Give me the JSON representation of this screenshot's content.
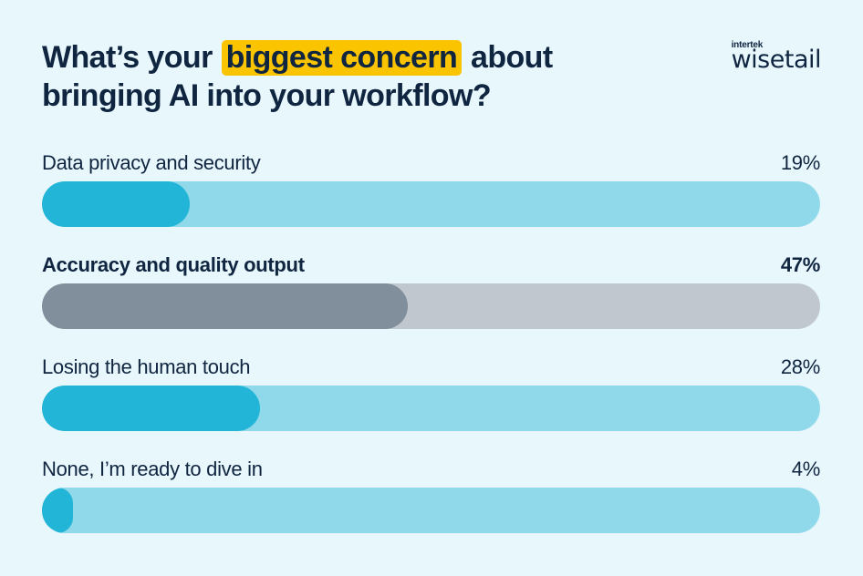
{
  "header": {
    "title_before": "What’s your ",
    "title_highlight": "biggest concern",
    "title_after": " about bringing AI into your workflow?",
    "highlight_color": "#fbc400"
  },
  "logo": {
    "small_text": "intertek",
    "big_text": "wisetail"
  },
  "poll": {
    "options": [
      {
        "label": "Data privacy and security",
        "percent_label": "19%",
        "value": 19,
        "style": "blue"
      },
      {
        "label": "Accuracy and quality output",
        "percent_label": "47%",
        "value": 47,
        "style": "grey-bold"
      },
      {
        "label": "Losing the human touch",
        "percent_label": "28%",
        "value": 28,
        "style": "blue"
      },
      {
        "label": "None, I’m ready to dive in",
        "percent_label": "4%",
        "value": 4,
        "style": "blue"
      }
    ],
    "colors": {
      "background": "#e8f7fc",
      "track_blue": "#90d9ea",
      "fill_blue": "#22b5d8",
      "track_grey": "#c0c7cf",
      "fill_grey": "#818e9b",
      "text": "#0f2540"
    }
  },
  "chart_data": {
    "type": "bar",
    "orientation": "horizontal",
    "title": "What’s your biggest concern about bringing AI into your workflow?",
    "categories": [
      "Data privacy and security",
      "Accuracy and quality output",
      "Losing the human touch",
      "None, I’m ready to dive in"
    ],
    "values": [
      19,
      47,
      28,
      4
    ],
    "unit": "%",
    "xlabel": "",
    "ylabel": "",
    "xlim": [
      0,
      100
    ],
    "grid": false,
    "legend": null,
    "highlighted_category": "Accuracy and quality output"
  }
}
